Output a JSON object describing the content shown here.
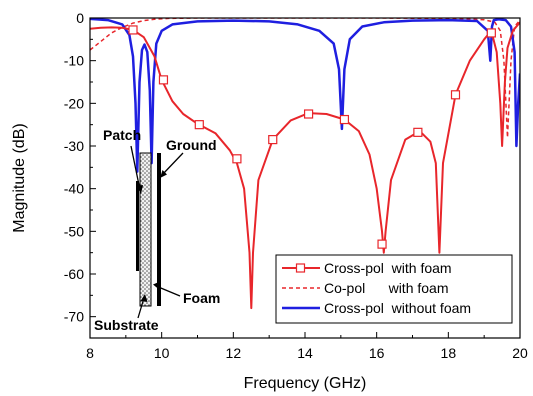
{
  "chart_data": {
    "type": "line",
    "xlabel": "Frequency (GHz)",
    "ylabel": "Magnitude (dB)",
    "xlim": [
      8,
      20
    ],
    "ylim": [
      -75,
      0
    ],
    "xticks": [
      "8",
      "10",
      "12",
      "14",
      "16",
      "18",
      "20"
    ],
    "yticks": [
      "0",
      "-10",
      "-20",
      "-30",
      "-40",
      "-50",
      "-60",
      "-70"
    ],
    "grid": false,
    "legend_position": "bottom-right",
    "series": [
      {
        "name": "Cross-pol  with foam",
        "color": "#e8262b",
        "line_style": "solid",
        "marker": "open-square",
        "x": [
          8.0,
          8.3,
          8.6,
          8.9,
          9.2,
          9.5,
          9.8,
          10.0,
          10.3,
          10.6,
          11.0,
          11.5,
          11.9,
          12.1,
          12.3,
          12.45,
          12.5,
          12.55,
          12.7,
          13.1,
          13.6,
          14.1,
          14.6,
          15.1,
          15.5,
          15.8,
          16.0,
          16.15,
          16.2,
          16.25,
          16.4,
          16.8,
          17.2,
          17.5,
          17.65,
          17.75,
          17.85,
          18.2,
          18.6,
          19.0,
          19.2,
          19.35,
          19.45,
          19.5,
          19.58,
          19.65,
          19.8,
          20.0
        ],
        "y": [
          -2.5,
          -2.3,
          -2.2,
          -2.3,
          -2.8,
          -4.5,
          -9,
          -14.5,
          -19.5,
          -22.5,
          -24.8,
          -27,
          -31,
          -34,
          -40,
          -55,
          -68,
          -55,
          -38,
          -28.5,
          -24,
          -22.3,
          -22.5,
          -23.8,
          -26.5,
          -32,
          -40,
          -50,
          -55,
          -50,
          -38,
          -28.5,
          -26.5,
          -29,
          -34,
          -55,
          -34,
          -18,
          -10,
          -5,
          -3,
          -8,
          -20,
          -30,
          -15,
          -7,
          -3,
          -1
        ],
        "marker_x": [
          9.2,
          10.05,
          11.05,
          12.1,
          13.1,
          14.1,
          15.1,
          16.15,
          17.15,
          18.2,
          19.2
        ],
        "marker_y": [
          -2.8,
          -14.5,
          -25,
          -33,
          -28.5,
          -22.5,
          -23.8,
          -53,
          -26.8,
          -18,
          -3.5
        ]
      },
      {
        "name": "Co-pol      with foam",
        "color": "#e8262b",
        "line_style": "dashed",
        "x": [
          8.0,
          8.3,
          8.6,
          8.9,
          9.2,
          9.5,
          9.8,
          10.2,
          11.0,
          12.0,
          14.0,
          16.0,
          18.0,
          19.0,
          19.3,
          19.45,
          19.55,
          19.65,
          19.75,
          19.85,
          20.0
        ],
        "y": [
          -7.5,
          -5.5,
          -3.5,
          -2.2,
          -1.2,
          -0.6,
          -0.3,
          -0.1,
          0,
          0,
          0,
          0,
          -0.1,
          -0.4,
          -1,
          -3,
          -10,
          -28,
          -10,
          -2,
          -0.5
        ]
      },
      {
        "name": "Cross-pol  without foam",
        "color": "#1f1fe0",
        "line_style": "solid",
        "x": [
          8.0,
          8.5,
          8.9,
          9.1,
          9.2,
          9.27,
          9.32,
          9.38,
          9.45,
          9.52,
          9.6,
          9.67,
          9.72,
          9.77,
          9.85,
          10.0,
          10.3,
          11.0,
          12.0,
          13.0,
          13.8,
          14.4,
          14.8,
          14.95,
          15.03,
          15.1,
          15.25,
          15.6,
          16.2,
          17.0,
          18.0,
          18.8,
          19.1,
          19.17,
          19.22,
          19.27,
          19.4,
          19.6,
          19.75,
          19.85,
          19.9,
          19.95,
          20.0
        ],
        "y": [
          -0.2,
          -0.5,
          -1.5,
          -4,
          -9,
          -20,
          -36,
          -15,
          -7.5,
          -6.2,
          -8,
          -17,
          -34,
          -15,
          -6,
          -3,
          -1.5,
          -0.8,
          -0.6,
          -0.8,
          -1.5,
          -3,
          -6,
          -12,
          -26,
          -12,
          -5,
          -2,
          -1,
          -0.6,
          -0.5,
          -0.7,
          -3,
          -10,
          -2,
          -0.5,
          -0.3,
          -0.5,
          -2,
          -8,
          -30,
          -20,
          -13
        ]
      }
    ],
    "inset_labels": {
      "patch": "Patch",
      "ground": "Ground",
      "substrate": "Substrate",
      "foam": "Foam"
    }
  }
}
